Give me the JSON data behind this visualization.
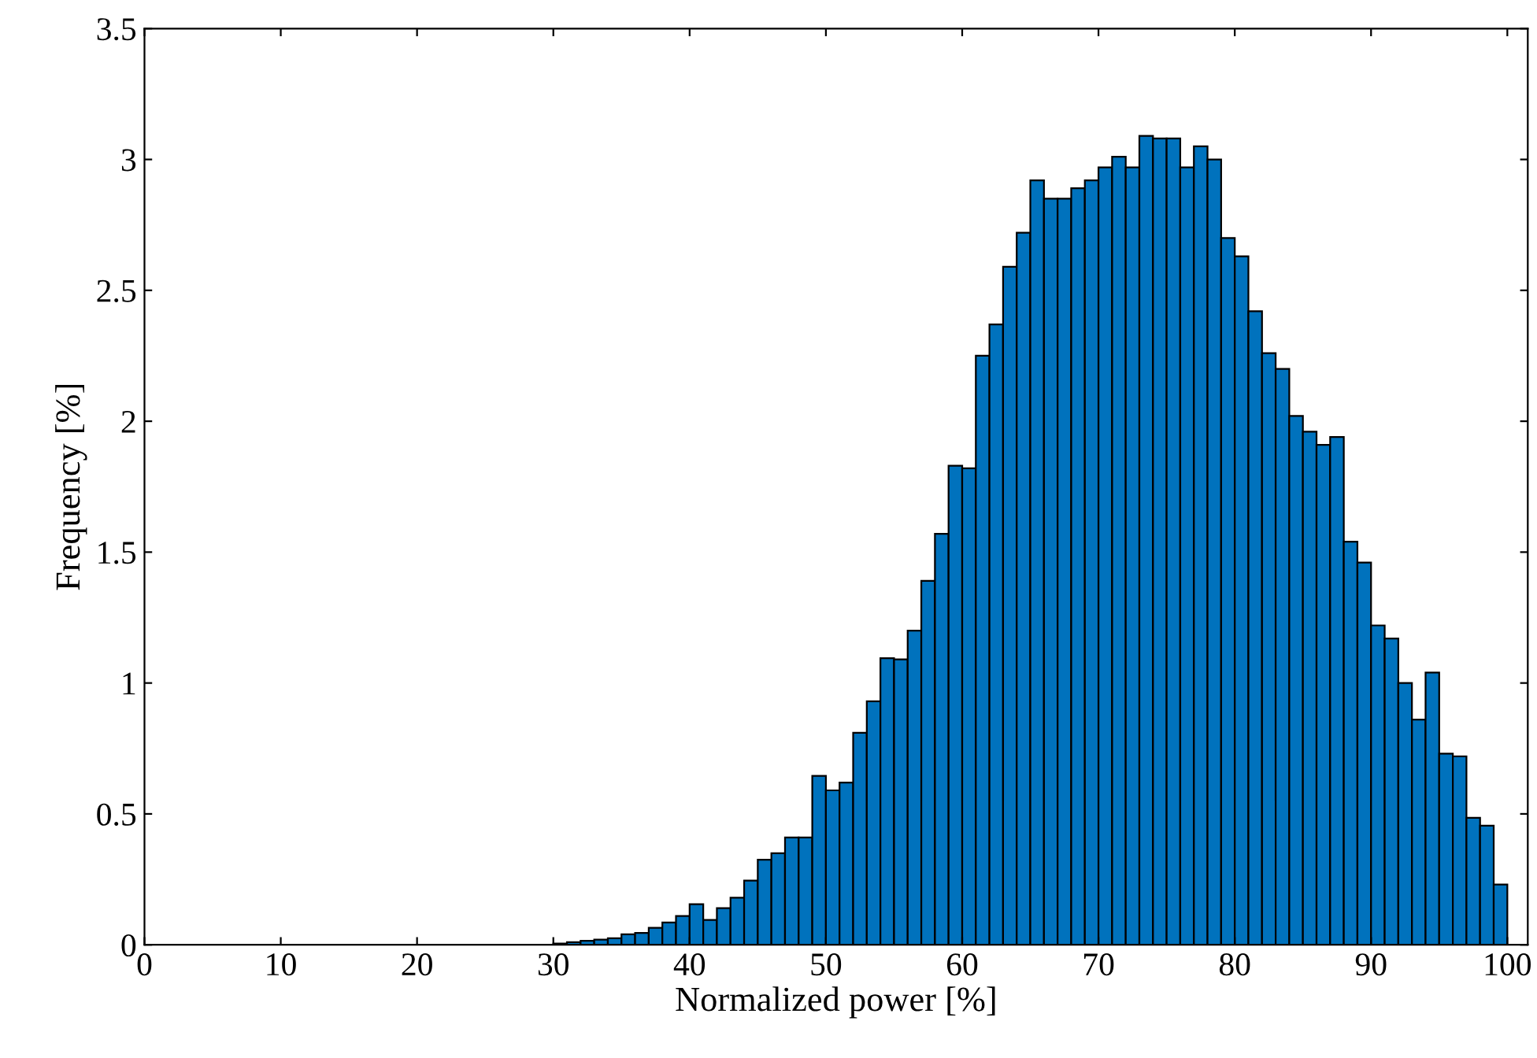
{
  "chart_data": {
    "type": "histogram",
    "xlabel": "Normalized power [%]",
    "ylabel": "Frequency [%]",
    "bins": [
      0,
      1,
      2,
      3,
      4,
      5,
      6,
      7,
      8,
      9,
      10,
      11,
      12,
      13,
      14,
      15,
      16,
      17,
      18,
      19,
      20,
      21,
      22,
      23,
      24,
      25,
      26,
      27,
      28,
      29,
      30,
      31,
      32,
      33,
      34,
      35,
      36,
      37,
      38,
      39,
      40,
      41,
      42,
      43,
      44,
      45,
      46,
      47,
      48,
      49,
      50,
      51,
      52,
      53,
      54,
      55,
      56,
      57,
      58,
      59,
      60,
      61,
      62,
      63,
      64,
      65,
      66,
      67,
      68,
      69,
      70,
      71,
      72,
      73,
      74,
      75,
      76,
      77,
      78,
      79,
      80,
      81,
      82,
      83,
      84,
      85,
      86,
      87,
      88,
      89,
      90,
      91,
      92,
      93,
      94,
      95,
      96,
      97,
      98,
      99,
      100
    ],
    "values": [
      0,
      0,
      0,
      0,
      0,
      0,
      0,
      0,
      0,
      0,
      0,
      0,
      0,
      0,
      0,
      0,
      0,
      0,
      0,
      0,
      0,
      0,
      0,
      0,
      0,
      0,
      0,
      0,
      0,
      0,
      0.005,
      0.01,
      0.015,
      0.02,
      0.025,
      0.04,
      0.045,
      0.065,
      0.085,
      0.11,
      0.155,
      0.095,
      0.14,
      0.18,
      0.245,
      0.325,
      0.35,
      0.41,
      0.41,
      0.645,
      0.59,
      0.62,
      0.81,
      0.93,
      1.095,
      1.09,
      1.2,
      1.39,
      1.57,
      1.83,
      1.82,
      2.25,
      2.37,
      2.59,
      2.72,
      2.92,
      2.85,
      2.85,
      2.89,
      2.92,
      2.97,
      3.01,
      2.97,
      3.09,
      3.08,
      3.08,
      2.97,
      3.05,
      3.0,
      2.7,
      2.63,
      2.42,
      2.26,
      2.2,
      2.02,
      1.96,
      1.91,
      1.94,
      1.54,
      1.46,
      1.22,
      1.17,
      1.0,
      0.86,
      1.04,
      0.73,
      0.72,
      0.485,
      0.455,
      0.23
    ],
    "color": "#0072bd",
    "xlim": [
      0,
      101.5
    ],
    "ylim": [
      0,
      3.5
    ],
    "xticks": [
      0,
      10,
      20,
      30,
      40,
      50,
      60,
      70,
      80,
      90,
      100
    ],
    "yticks": [
      0,
      0.5,
      1,
      1.5,
      2,
      2.5,
      3,
      3.5
    ],
    "grid": false
  }
}
